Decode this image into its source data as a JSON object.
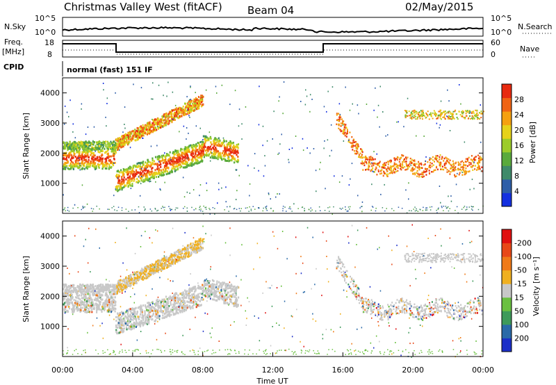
{
  "header": {
    "station": "Christmas Valley West (fitACF)",
    "beam": "Beam 04",
    "date": "02/May/2015"
  },
  "strip": {
    "nsky_label": "N.Sky",
    "nsky_ticks": [
      "10^5",
      "10^0"
    ],
    "nsearch_label": "N.Search",
    "nsearch_ticks": [
      "10^5",
      "10^0"
    ],
    "freq_label": "Freq.",
    "freq_unit": "[MHz]",
    "freq_ticks": [
      "18",
      "8"
    ],
    "nave_label": "Nave",
    "nave_ticks": [
      "60",
      "0"
    ],
    "cpid_label": "CPID",
    "cpid_value": "normal (fast) 151 IF"
  },
  "chart_data": [
    {
      "type": "heatmap",
      "name": "power-panel",
      "ylabel": "Slant Range [km]",
      "ylim": [
        0,
        4500
      ],
      "yticks": [
        1000,
        2000,
        3000,
        4000
      ],
      "xlim": [
        0,
        24
      ],
      "colorbar": {
        "label": "Power [dB]",
        "ticks": [
          "4",
          "8",
          "12",
          "16",
          "20",
          "24",
          "28"
        ],
        "colors": [
          "#1430e0",
          "#2e5ea8",
          "#3f8a6a",
          "#5aaa3c",
          "#9ccc2a",
          "#e6d21a",
          "#f5a010",
          "#f06414",
          "#e82a10"
        ]
      }
    },
    {
      "type": "heatmap",
      "name": "velocity-panel",
      "ylabel": "Slant Range [km]",
      "ylim": [
        0,
        4500
      ],
      "yticks": [
        1000,
        2000,
        3000,
        4000
      ],
      "xlim": [
        0,
        24
      ],
      "xlabel": "Time UT",
      "xticks": [
        "00:00",
        "04:00",
        "08:00",
        "12:00",
        "16:00",
        "20:00",
        "00:00"
      ],
      "colorbar": {
        "label": "Velocity [m s⁻¹]",
        "ticks": [
          "200",
          "100",
          "50",
          "15",
          "-15",
          "-50",
          "-100",
          "-200"
        ],
        "colors": [
          "#1b2fc8",
          "#2a6aa8",
          "#3e9a5a",
          "#6ac040",
          "#c8c8c8",
          "#f0b020",
          "#f07a18",
          "#e84818",
          "#e01010"
        ]
      }
    }
  ]
}
